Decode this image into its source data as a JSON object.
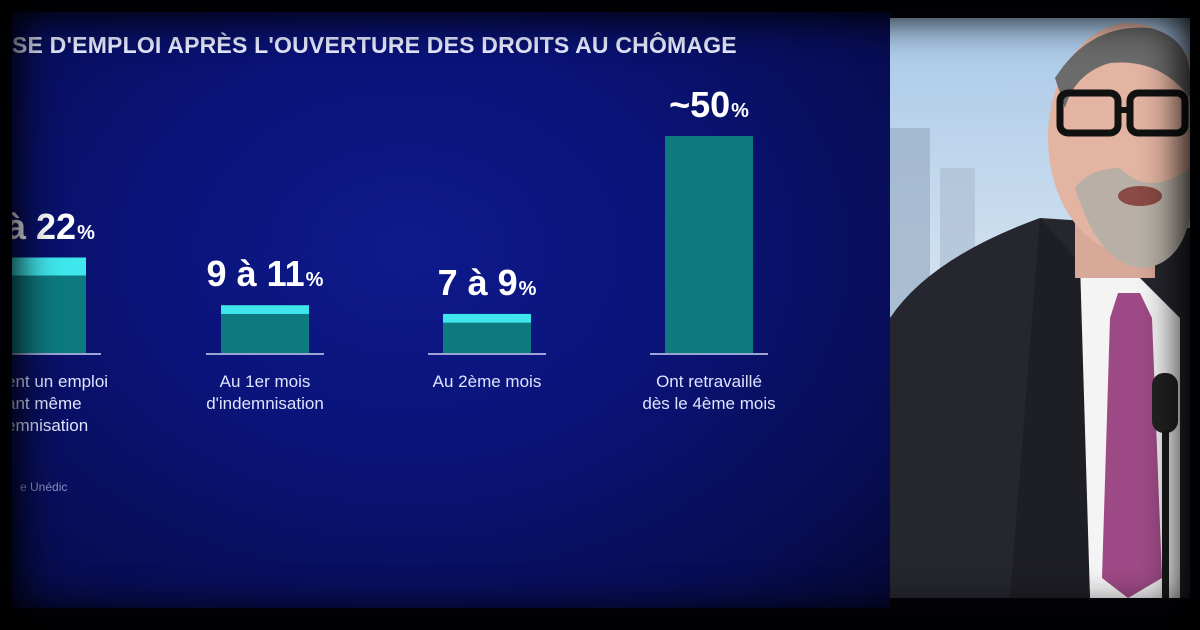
{
  "headline": "SE D'EMPLOI APRÈS L'OUVERTURE DES DROITS AU CHÔMAGE",
  "source": "e Unédic",
  "colors": {
    "bar": "#0d7a80",
    "bar_top": "#3fe6ec",
    "baseline": "#9aa5d6",
    "background": "#0a1378"
  },
  "chart_data": {
    "type": "bar",
    "title": "SE D'EMPLOI APRÈS L'OUVERTURE DES DROITS AU CHÔMAGE",
    "unit": "%",
    "ylim": [
      0,
      50
    ],
    "categories": [
      "ent un emploi ant même emnisation",
      "Au 1er mois d'indemnisation",
      "Au 2ème mois",
      "Ont retravaillé dès le 4ème mois"
    ],
    "category_lines": [
      [
        "ent un emploi",
        "ant même",
        "emnisation"
      ],
      [
        "Au 1er mois",
        "d'indemnisation"
      ],
      [
        "Au 2ème mois"
      ],
      [
        "Ont retravaillé",
        "dès le 4ème mois"
      ]
    ],
    "value_labels": [
      {
        "num": "à 22",
        "pct": "%"
      },
      {
        "num": "9 à 11",
        "pct": "%"
      },
      {
        "num": "7 à 9",
        "pct": "%"
      },
      {
        "num": "~50",
        "pct": "%"
      }
    ],
    "range_low": [
      null,
      9,
      7,
      null
    ],
    "values": [
      22,
      11,
      9,
      50
    ]
  },
  "photo": {
    "icons": [
      "person-icon",
      "microphone-icon"
    ]
  }
}
